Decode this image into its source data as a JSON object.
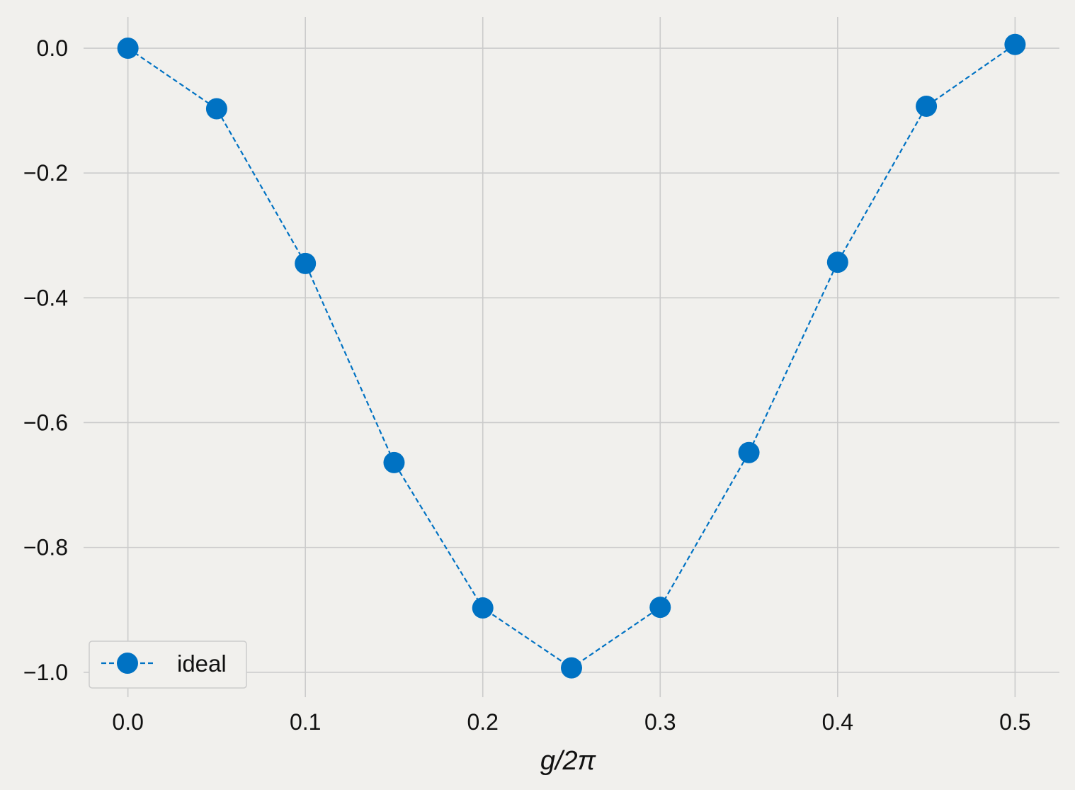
{
  "chart_data": {
    "type": "line",
    "title": "",
    "xlabel": "g/2π",
    "ylabel": "",
    "x": [
      0.0,
      0.05,
      0.1,
      0.15,
      0.2,
      0.25,
      0.3,
      0.35,
      0.4,
      0.45,
      0.5
    ],
    "series": [
      {
        "name": "ideal",
        "values": [
          0.0,
          -0.097,
          -0.345,
          -0.664,
          -0.897,
          -0.993,
          -0.896,
          -0.648,
          -0.343,
          -0.093,
          0.006
        ],
        "color": "#0072c3",
        "line_style": "dashed",
        "marker": "circle"
      }
    ],
    "xticks": [
      "0.0",
      "0.1",
      "0.2",
      "0.3",
      "0.4",
      "0.5"
    ],
    "yticks": [
      "0.0",
      "−0.2",
      "−0.4",
      "−0.6",
      "−0.8",
      "−1.0"
    ],
    "xlim": [
      -0.025,
      0.525
    ],
    "ylim": [
      -1.04,
      0.05
    ],
    "grid": true,
    "legend_position": "lower-left",
    "background_color": "#f1f0ed",
    "grid_color": "#cbcbcb"
  }
}
